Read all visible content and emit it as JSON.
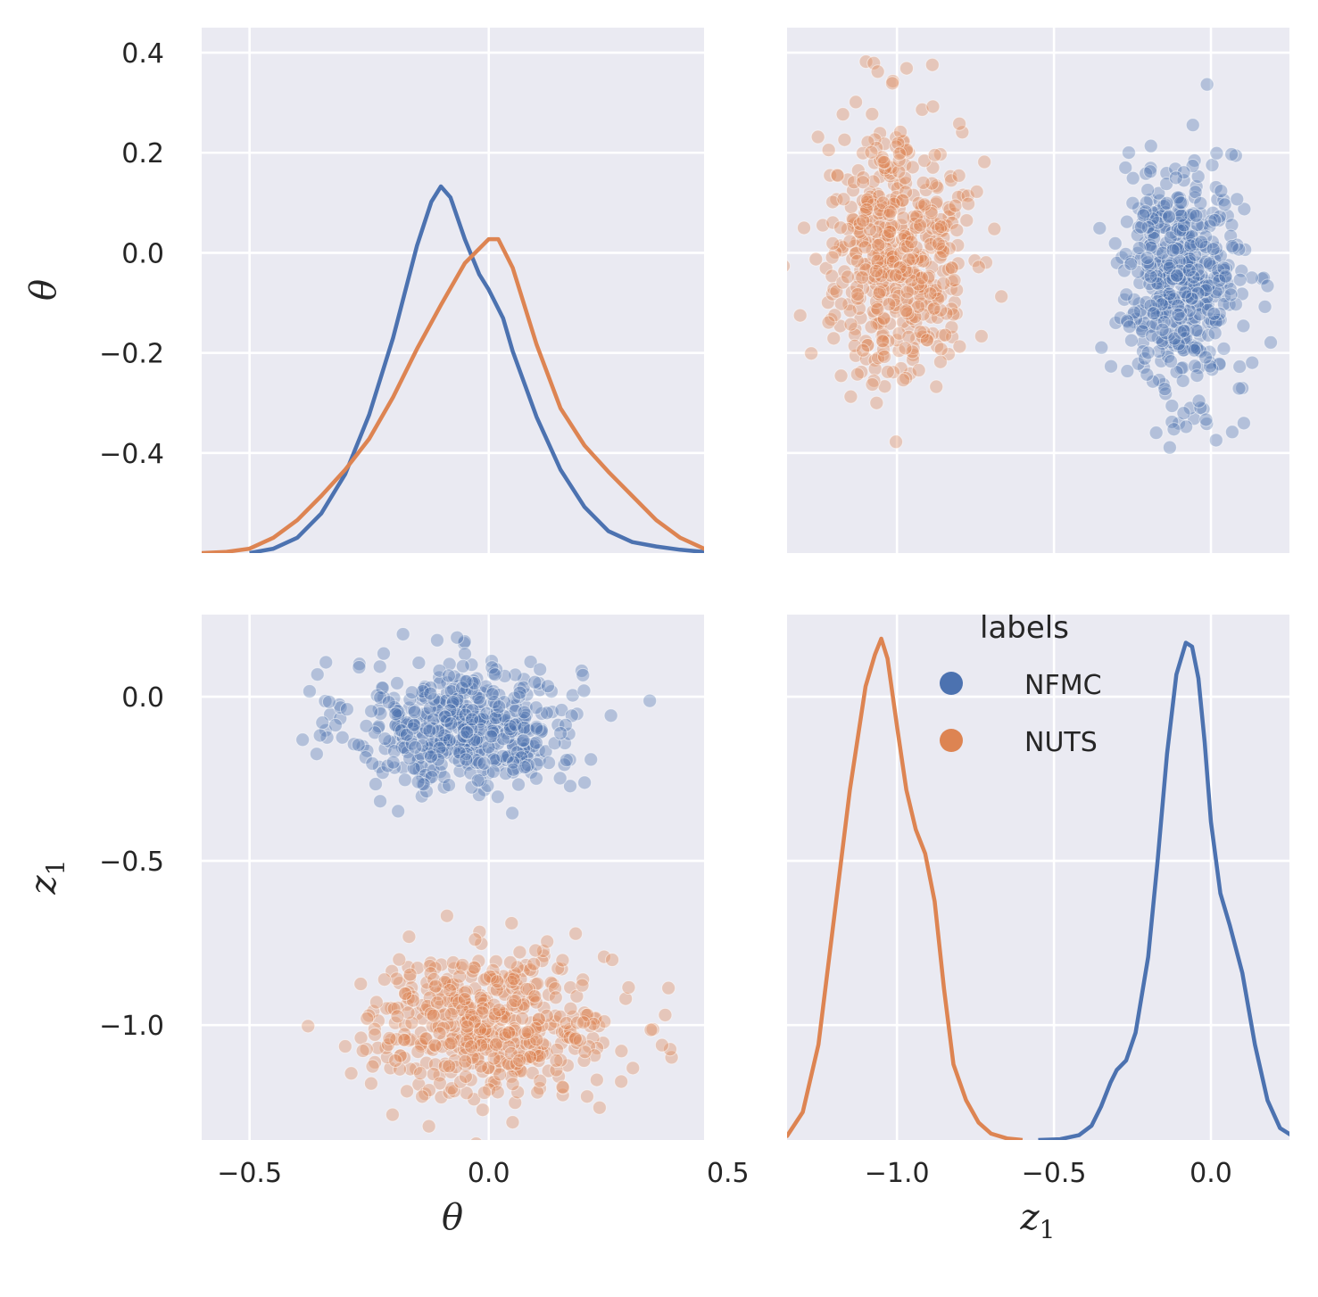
{
  "chart_data": {
    "type": "scatter",
    "figure_kind": "pairplot",
    "variables": [
      {
        "key": "theta",
        "label": "θ",
        "range": [
          -0.6,
          0.45
        ]
      },
      {
        "key": "z1",
        "label": "z",
        "sub": "1",
        "range": [
          -1.35,
          0.25
        ]
      }
    ],
    "x_ticks": {
      "theta": [
        {
          "v": -0.5,
          "t": "−0.5"
        },
        {
          "v": 0.0,
          "t": "0.0"
        },
        {
          "v": 0.5,
          "t": "0.5"
        }
      ],
      "z1": [
        {
          "v": -1.0,
          "t": "−1.0"
        },
        {
          "v": -0.5,
          "t": "−0.5"
        },
        {
          "v": 0.0,
          "t": "0.0"
        }
      ]
    },
    "y_ticks": {
      "theta": [
        {
          "v": 0.4,
          "t": "0.4"
        },
        {
          "v": 0.2,
          "t": "0.2"
        },
        {
          "v": 0.0,
          "t": "0.0"
        },
        {
          "v": -0.2,
          "t": "−0.2"
        },
        {
          "v": -0.4,
          "t": "−0.4"
        }
      ],
      "z1": [
        {
          "v": 0.0,
          "t": "0.0"
        },
        {
          "v": -0.5,
          "t": "−0.5"
        },
        {
          "v": -1.0,
          "t": "−1.0"
        }
      ]
    },
    "legend": {
      "title": "labels",
      "position": "upper-center",
      "entries": [
        {
          "name": "NFMC",
          "color": "#4c72b0"
        },
        {
          "name": "NUTS",
          "color": "#dd8452"
        }
      ]
    },
    "series": [
      {
        "name": "NFMC",
        "color": "#4c72b0",
        "n_points": 500,
        "theta_mean": -0.05,
        "theta_sd": 0.12,
        "z1_mean": -0.09,
        "z1_sd": 0.1,
        "kde_theta": {
          "x": [
            -0.5,
            -0.45,
            -0.4,
            -0.35,
            -0.3,
            -0.25,
            -0.2,
            -0.15,
            -0.12,
            -0.1,
            -0.08,
            -0.05,
            -0.02,
            0.0,
            0.03,
            0.05,
            0.1,
            0.15,
            0.2,
            0.25,
            0.3,
            0.35,
            0.4,
            0.45,
            0.5
          ],
          "y": [
            0.0,
            0.02,
            0.07,
            0.18,
            0.36,
            0.63,
            0.98,
            1.4,
            1.6,
            1.67,
            1.62,
            1.43,
            1.27,
            1.2,
            1.07,
            0.92,
            0.62,
            0.38,
            0.21,
            0.1,
            0.05,
            0.03,
            0.015,
            0.005,
            0.0
          ]
        },
        "kde_z1": {
          "x": [
            -0.55,
            -0.48,
            -0.42,
            -0.38,
            -0.35,
            -0.32,
            -0.3,
            -0.27,
            -0.24,
            -0.2,
            -0.17,
            -0.14,
            -0.11,
            -0.08,
            -0.06,
            -0.04,
            -0.02,
            0.0,
            0.03,
            0.06,
            0.1,
            0.14,
            0.18,
            0.22,
            0.28
          ],
          "y": [
            0.0,
            0.01,
            0.06,
            0.18,
            0.42,
            0.72,
            0.88,
            1.0,
            1.35,
            2.3,
            3.5,
            4.85,
            5.85,
            6.25,
            6.2,
            5.8,
            5.0,
            4.0,
            3.1,
            2.7,
            2.1,
            1.2,
            0.5,
            0.15,
            0.0
          ]
        }
      },
      {
        "name": "NUTS",
        "color": "#dd8452",
        "n_points": 500,
        "theta_mean": 0.0,
        "theta_sd": 0.13,
        "z1_mean": -1.0,
        "z1_sd": 0.11,
        "kde_theta": {
          "x": [
            -0.6,
            -0.55,
            -0.5,
            -0.45,
            -0.4,
            -0.35,
            -0.3,
            -0.25,
            -0.2,
            -0.15,
            -0.1,
            -0.05,
            0.0,
            0.02,
            0.05,
            0.1,
            0.15,
            0.2,
            0.25,
            0.3,
            0.35,
            0.4,
            0.45,
            0.5,
            0.57
          ],
          "y": [
            0.0,
            0.005,
            0.02,
            0.07,
            0.15,
            0.26,
            0.38,
            0.52,
            0.71,
            0.93,
            1.13,
            1.32,
            1.43,
            1.43,
            1.3,
            0.95,
            0.66,
            0.49,
            0.37,
            0.26,
            0.15,
            0.07,
            0.02,
            0.005,
            0.0
          ]
        },
        "kde_z1": {
          "x": [
            -1.4,
            -1.35,
            -1.3,
            -1.25,
            -1.2,
            -1.15,
            -1.1,
            -1.07,
            -1.05,
            -1.03,
            -1.0,
            -0.97,
            -0.94,
            -0.91,
            -0.88,
            -0.85,
            -0.82,
            -0.78,
            -0.74,
            -0.7,
            -0.65,
            -0.6
          ],
          "y": [
            0.0,
            0.05,
            0.35,
            1.2,
            2.8,
            4.4,
            5.7,
            6.1,
            6.3,
            6.05,
            5.2,
            4.4,
            3.9,
            3.6,
            3.0,
            1.9,
            0.95,
            0.5,
            0.22,
            0.08,
            0.02,
            0.0
          ]
        }
      }
    ]
  }
}
